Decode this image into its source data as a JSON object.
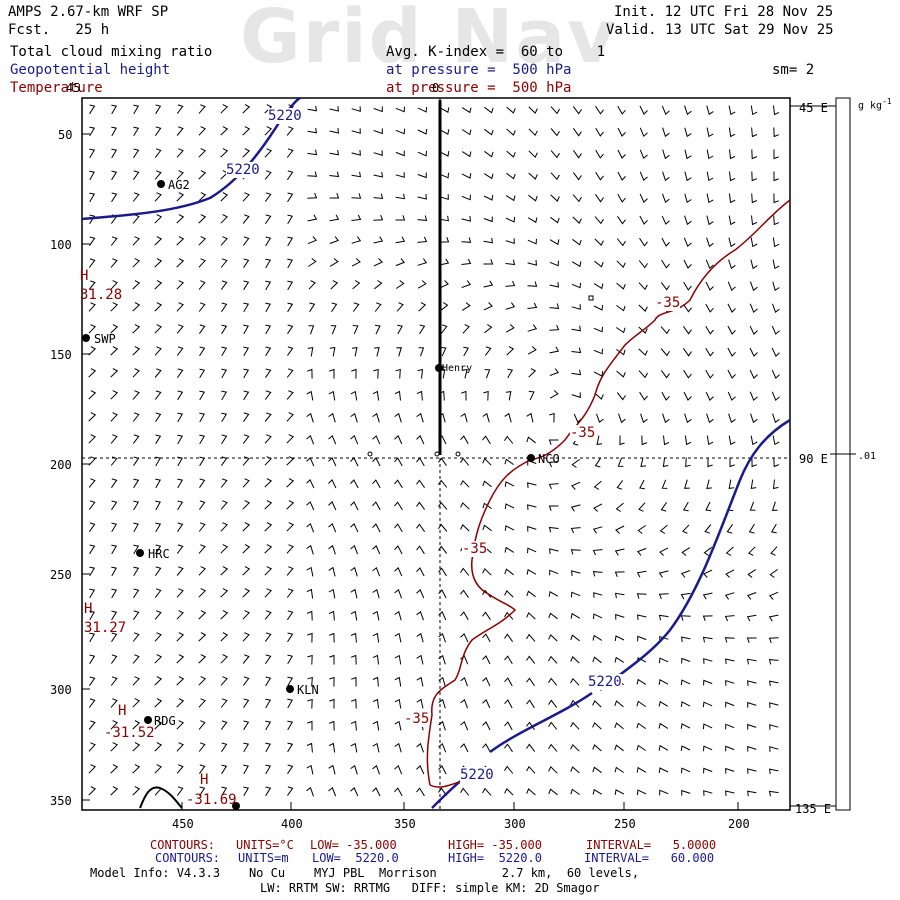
{
  "header": {
    "model": "AMPS 2.67-km WRF SP",
    "forecast": "Fcst.   25 h",
    "init": "Init. 12 UTC Fri 28 Nov 25",
    "valid": "Valid. 13 UTC Sat 29 Nov 25",
    "field1": "Total cloud mixing ratio",
    "field2": "Geopotential height",
    "field3": "Temperature",
    "avg": "Avg. K-index =  60 to    1",
    "pressure1": "at pressure =  500 hPa",
    "pressure2": "at pressure =  500 hPa",
    "sm": "sm= 2",
    "watermark": "Grid Nav"
  },
  "axes": {
    "y_ticks": [
      "50",
      "100",
      "150",
      "200",
      "250",
      "300",
      "350"
    ],
    "y_top": "45",
    "x_ticks": [
      "450",
      "400",
      "350",
      "300",
      "250",
      "200"
    ],
    "x_top": "0",
    "lon_labels": [
      "45 E",
      "90 E",
      "135 E"
    ]
  },
  "colorbar": {
    "units": "g kg",
    "units_exp": "-1",
    "value": ".01"
  },
  "stations": [
    {
      "name": "AG2"
    },
    {
      "name": "SWP"
    },
    {
      "name": "Henry"
    },
    {
      "name": "NCO"
    },
    {
      "name": "HRC"
    },
    {
      "name": "KLN"
    },
    {
      "name": "RDG"
    }
  ],
  "contour_labels": {
    "height": [
      "5220",
      "5220",
      "5220",
      "5220"
    ],
    "temp": [
      "-35",
      "-35",
      "-35",
      "-35"
    ]
  },
  "highs": [
    {
      "symbol": "H",
      "value": "31.28"
    },
    {
      "symbol": "H",
      "value": "31.27"
    },
    {
      "symbol": "H",
      "value": "-31.52"
    },
    {
      "symbol": "H",
      "value": "-31.69"
    }
  ],
  "footer": {
    "temp_contours": "CONTOURS:",
    "temp_units": "UNITS=°C",
    "temp_low": "LOW= -35.000",
    "temp_high": "HIGH= -35.000",
    "temp_interval": "INTERVAL=   5.0000",
    "h_contours": "CONTOURS:",
    "h_units": "UNITS=m",
    "h_low": "LOW=  5220.0",
    "h_high": "HIGH=  5220.0",
    "h_interval": "INTERVAL=   60.000",
    "model_info": "Model Info: V4.3.3    No Cu    MYJ PBL  Morrison         2.7 km,  60 levels,",
    "model_info2": "LW: RRTM SW: RRTMG   DIFF: simple KM: 2D Smagor"
  },
  "colors": {
    "height": "#1a1a8c",
    "temp": "#8b0000",
    "text": "#000000",
    "watermark": "#e6e6e6"
  }
}
